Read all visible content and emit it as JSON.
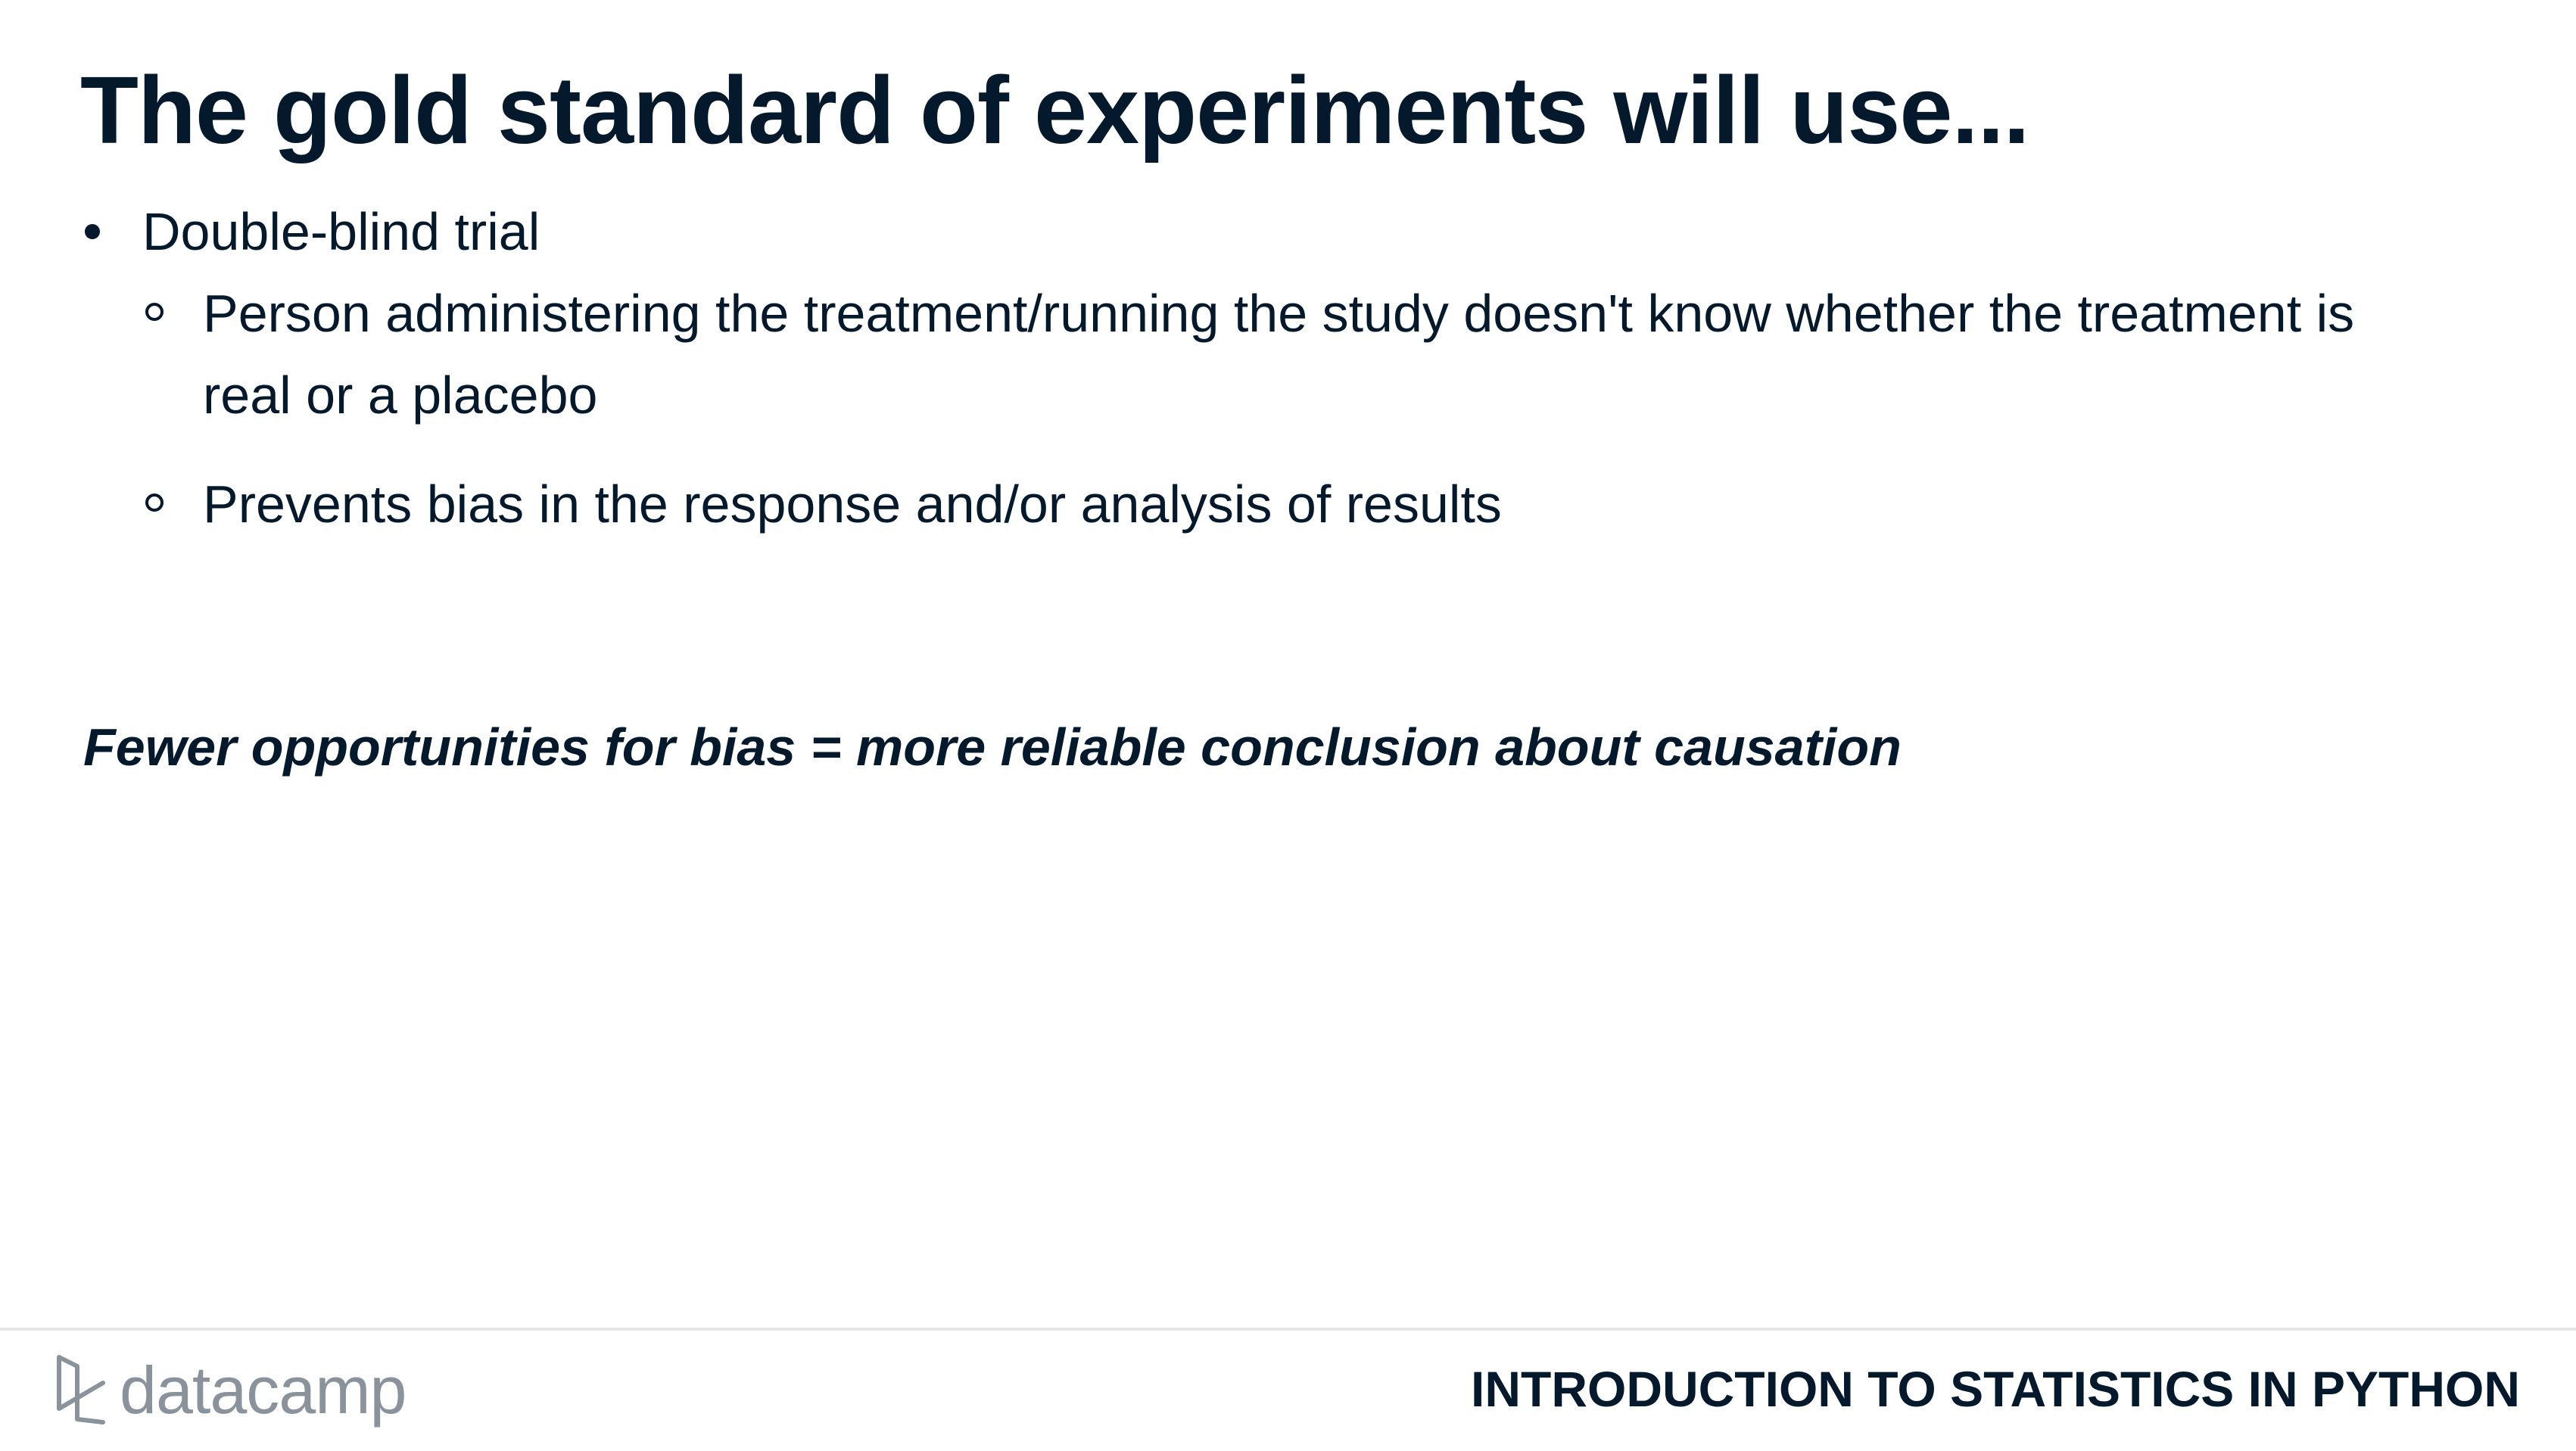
{
  "slide": {
    "title": "The gold standard of experiments will use...",
    "bullets": [
      {
        "text": "Double-blind trial",
        "sub": [
          "Person administering the treatment/running the study doesn't know whether the treatment is real or a placebo",
          "Prevents bias in the response and/or analysis of results"
        ]
      }
    ],
    "emphasis": "Fewer opportunities for bias = more reliable conclusion about causation"
  },
  "footer": {
    "logo_text": "datacamp",
    "course_title": "INTRODUCTION TO STATISTICS IN PYTHON"
  },
  "colors": {
    "text": "#05192d",
    "logo": "#8a939c",
    "divider": "#e5e7e9"
  },
  "icons": {
    "logo": "datacamp-logo-icon",
    "bullet": "filled-dot",
    "sub_bullet": "hollow-circle"
  }
}
